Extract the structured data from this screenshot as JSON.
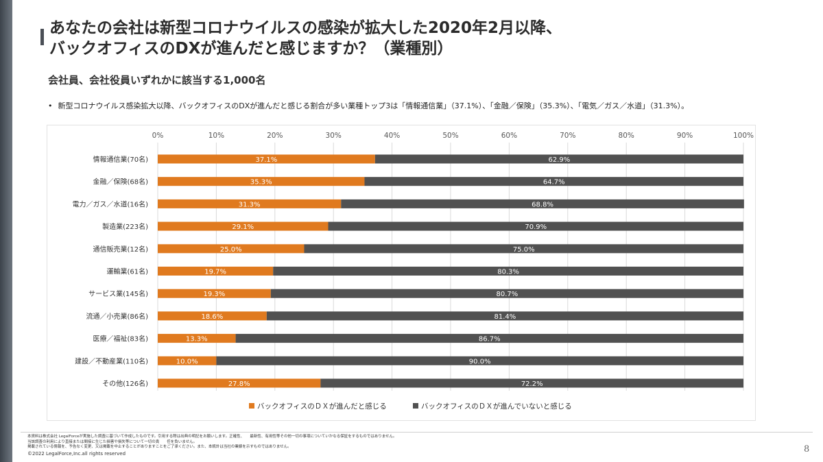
{
  "title": {
    "line1": "あなたの会社は新型コロナウイルスの感染が拡大した2020年2月以降、",
    "line2": "バックオフィスのDXが進んだと感じますか？（業種別）"
  },
  "subtitle": "会社員、会社役員いずれかに該当する1,000名",
  "bullet": "新型コロナウイルス感染拡大以降、バックオフィスのDXが進んだと感じる割合が多い業種トップ3は「情報通信業」（37.1%）、「金融／保険」（35.3%）、「電気／ガス／水道」（31.3%）。",
  "bullet_mark": "•",
  "colors": {
    "progressed": "#e07a1f",
    "not_progressed": "#515151",
    "axis_text": "#555555",
    "gridline": "#d9d9d9"
  },
  "chart_data": {
    "type": "bar",
    "orientation": "horizontal",
    "stacked": true,
    "categories": [
      "情報通信業(70名)",
      "金融／保険(68名)",
      "電力／ガス／水道(16名)",
      "製造業(223名)",
      "通信販売業(12名)",
      "運輸業(61名)",
      "サービス業(145名)",
      "流通／小売業(86名)",
      "医療／福祉(83名)",
      "建設／不動産業(110名)",
      "その他(126名)"
    ],
    "series": [
      {
        "name": "バックオフィスのＤＸが進んだと感じる",
        "values": [
          37.1,
          35.3,
          31.3,
          29.1,
          25.0,
          19.7,
          19.3,
          18.6,
          13.3,
          10.0,
          27.8
        ],
        "labels": [
          "37.1%",
          "35.3%",
          "31.3%",
          "29.1%",
          "25.0%",
          "19.7%",
          "19.3%",
          "18.6%",
          "13.3%",
          "10.0%",
          "27.8%"
        ]
      },
      {
        "name": "バックオフィスのＤＸが進んでいないと感じる",
        "values": [
          62.9,
          64.7,
          68.8,
          70.9,
          75.0,
          80.3,
          80.7,
          81.4,
          86.7,
          90.0,
          72.2
        ],
        "labels": [
          "62.9%",
          "64.7%",
          "68.8%",
          "70.9%",
          "75.0%",
          "80.3%",
          "80.7%",
          "81.4%",
          "86.7%",
          "90.0%",
          "72.2%"
        ]
      }
    ],
    "xlim": [
      0,
      100
    ],
    "x_ticks": [
      "0%",
      "10%",
      "20%",
      "30%",
      "40%",
      "50%",
      "60%",
      "70%",
      "80%",
      "90%",
      "100%"
    ],
    "grid": true,
    "legend_position": "bottom"
  },
  "footer": {
    "notes": [
      "本資料は株式会社 LegalForceが実施した調査に基づいて作成したものです。引用する際は出典の明記をお願いします。正確性、　　最新性、有用性等その他一切の事項についていかなる保証をするものではありません。",
      "当該調査の利用により直接または間接に生じた損害や損失等について一切の責　　任を負いません。",
      "掲載されている情報を、予告なく変更、又は掲載を中止することがありますことをご了承ください。また、本統計は当社の業績を示すものではありません。"
    ],
    "copyright": "©2022 LegalForce,Inc.all rights reserved",
    "page_number": "8"
  }
}
